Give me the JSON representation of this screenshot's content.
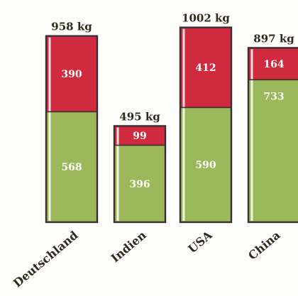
{
  "chart_data": {
    "type": "bar",
    "stacked": true,
    "unit": "kg",
    "categories": [
      "Deutschland",
      "Indien",
      "USA",
      "China"
    ],
    "totals": [
      "958 kg",
      "495 kg",
      "1002 kg",
      "897 kg"
    ],
    "series": [
      {
        "values": [
          568,
          396,
          590,
          733
        ],
        "color": "#9bb85a"
      },
      {
        "values": [
          390,
          99,
          412,
          164
        ],
        "color": "#cf2a3e"
      }
    ],
    "grid": false,
    "legend": "none"
  }
}
